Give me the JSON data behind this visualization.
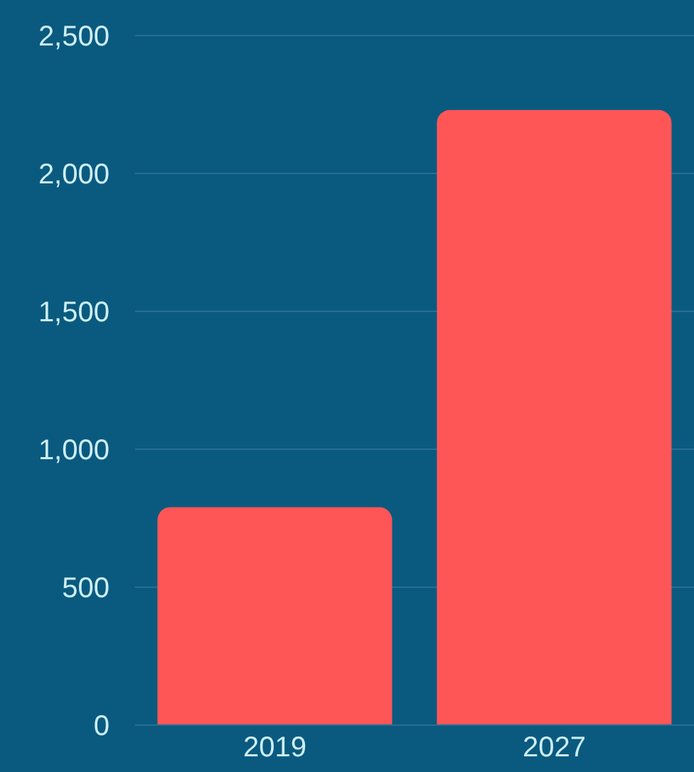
{
  "chart_data": {
    "type": "bar",
    "categories": [
      "2019",
      "2027"
    ],
    "values": [
      790,
      2230
    ],
    "color": "#fe5657",
    "ylim": [
      0,
      2500
    ],
    "yticks": [
      0,
      500,
      {
        "value": 1000,
        "label": "1,000"
      },
      {
        "value": 1500,
        "label": "1,500"
      },
      {
        "value": 2000,
        "label": "2,000"
      },
      {
        "value": 2500,
        "label": "2,500"
      }
    ],
    "grid": "y"
  }
}
